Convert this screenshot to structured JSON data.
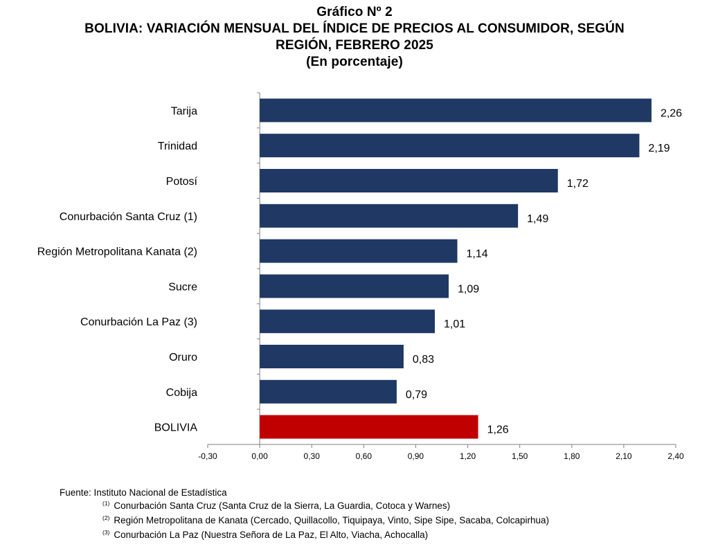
{
  "title": {
    "line1": "Gráfico Nº 2",
    "line2": "BOLIVIA: VARIACIÓN MENSUAL DEL ÍNDICE DE PRECIOS AL CONSUMIDOR, SEGÚN",
    "line3": "REGIÓN, FEBRERO 2025",
    "line4": "(En porcentaje)"
  },
  "colors": {
    "bar": "#1f3864",
    "highlight": "#c00000",
    "axis": "#7f7f7f"
  },
  "chart_data": {
    "type": "bar",
    "orientation": "horizontal",
    "title": "BOLIVIA: VARIACIÓN MENSUAL DEL ÍNDICE DE PRECIOS AL CONSUMIDOR, SEGÚN REGIÓN, FEBRERO 2025",
    "subtitle": "(En porcentaje)",
    "categories": [
      "Tarija",
      "Trinidad",
      "Potosí",
      "Conurbación Santa Cruz (1)",
      "Región Metropolitana Kanata (2)",
      "Sucre",
      "Conurbación La Paz (3)",
      "Oruro",
      "Cobija",
      "BOLIVIA"
    ],
    "values": [
      2.26,
      2.19,
      1.72,
      1.49,
      1.14,
      1.09,
      1.01,
      0.83,
      0.79,
      1.26
    ],
    "value_labels": [
      "2,26",
      "2,19",
      "1,72",
      "1,49",
      "1,14",
      "1,09",
      "1,01",
      "0,83",
      "0,79",
      "1,26"
    ],
    "highlight_category": "BOLIVIA",
    "xlim": [
      -0.3,
      2.4
    ],
    "x_ticks": [
      -0.3,
      0,
      0.3,
      0.6,
      0.9,
      1.2,
      1.5,
      1.8,
      2.1,
      2.4
    ],
    "x_tick_labels": [
      "-0,30",
      "0,00",
      "0,30",
      "0,60",
      "0,90",
      "1,20",
      "1,50",
      "1,80",
      "2,10",
      "2,40"
    ],
    "grid": false,
    "xlabel": "",
    "ylabel": ""
  },
  "notes": {
    "source": "Fuente: Instituto Nacional de Estadística",
    "footnotes": [
      {
        "mark": "(1)",
        "text": "Conurbación Santa Cruz (Santa Cruz de la Sierra, La Guardia, Cotoca y Warnes)"
      },
      {
        "mark": "(2)",
        "text": "Región Metropolitana de Kanata (Cercado, Quillacollo, Tiquipaya, Vinto, Sipe Sipe, Sacaba, Colcapirhua)"
      },
      {
        "mark": "(3)",
        "text": "Conurbación La Paz (Nuestra Señora de La Paz, El Alto, Viacha, Achocalla)"
      }
    ]
  }
}
